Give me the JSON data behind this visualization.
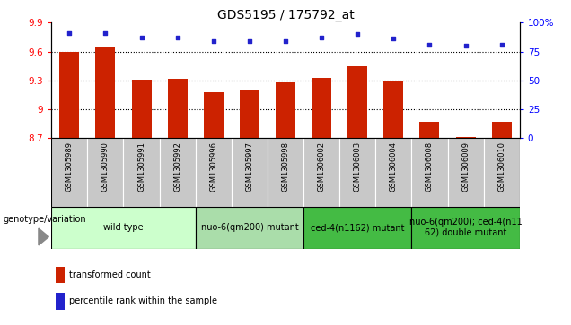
{
  "title": "GDS5195 / 175792_at",
  "samples": [
    "GSM1305989",
    "GSM1305990",
    "GSM1305991",
    "GSM1305992",
    "GSM1305996",
    "GSM1305997",
    "GSM1305998",
    "GSM1306002",
    "GSM1306003",
    "GSM1306004",
    "GSM1306008",
    "GSM1306009",
    "GSM1306010"
  ],
  "bar_values": [
    9.6,
    9.65,
    9.31,
    9.32,
    9.18,
    9.2,
    9.28,
    9.33,
    9.45,
    9.29,
    8.87,
    8.71,
    8.87
  ],
  "dot_values": [
    91,
    91,
    87,
    87,
    84,
    84,
    84,
    87,
    90,
    86,
    81,
    80,
    81
  ],
  "ylim_left": [
    8.7,
    9.9
  ],
  "ylim_right": [
    0,
    100
  ],
  "yticks_left": [
    8.7,
    9.0,
    9.3,
    9.6,
    9.9
  ],
  "yticks_right": [
    0,
    25,
    50,
    75,
    100
  ],
  "ytick_labels_left": [
    "8.7",
    "9",
    "9.3",
    "9.6",
    "9.9"
  ],
  "ytick_labels_right": [
    "0",
    "25",
    "50",
    "75",
    "100%"
  ],
  "grid_values": [
    9.0,
    9.3,
    9.6
  ],
  "bar_color": "#CC2200",
  "dot_color": "#2222CC",
  "bar_bottom": 8.7,
  "groups": [
    {
      "label": "wild type",
      "indices": [
        0,
        1,
        2,
        3
      ],
      "color": "#CCFFCC"
    },
    {
      "label": "nuo-6(qm200) mutant",
      "indices": [
        4,
        5,
        6
      ],
      "color": "#AADDAA"
    },
    {
      "label": "ced-4(n1162) mutant",
      "indices": [
        7,
        8,
        9
      ],
      "color": "#44BB44"
    },
    {
      "label": "nuo-6(qm200); ced-4(n11\n62) double mutant",
      "indices": [
        10,
        11,
        12
      ],
      "color": "#44BB44"
    }
  ],
  "genotype_label": "genotype/variation",
  "legend_bar_label": "transformed count",
  "legend_dot_label": "percentile rank within the sample",
  "background_sample": "#C8C8C8",
  "title_fontsize": 10,
  "tick_fontsize": 7.5,
  "sample_fontsize": 6,
  "group_fontsize": 7,
  "legend_fontsize": 7,
  "genotype_fontsize": 7
}
